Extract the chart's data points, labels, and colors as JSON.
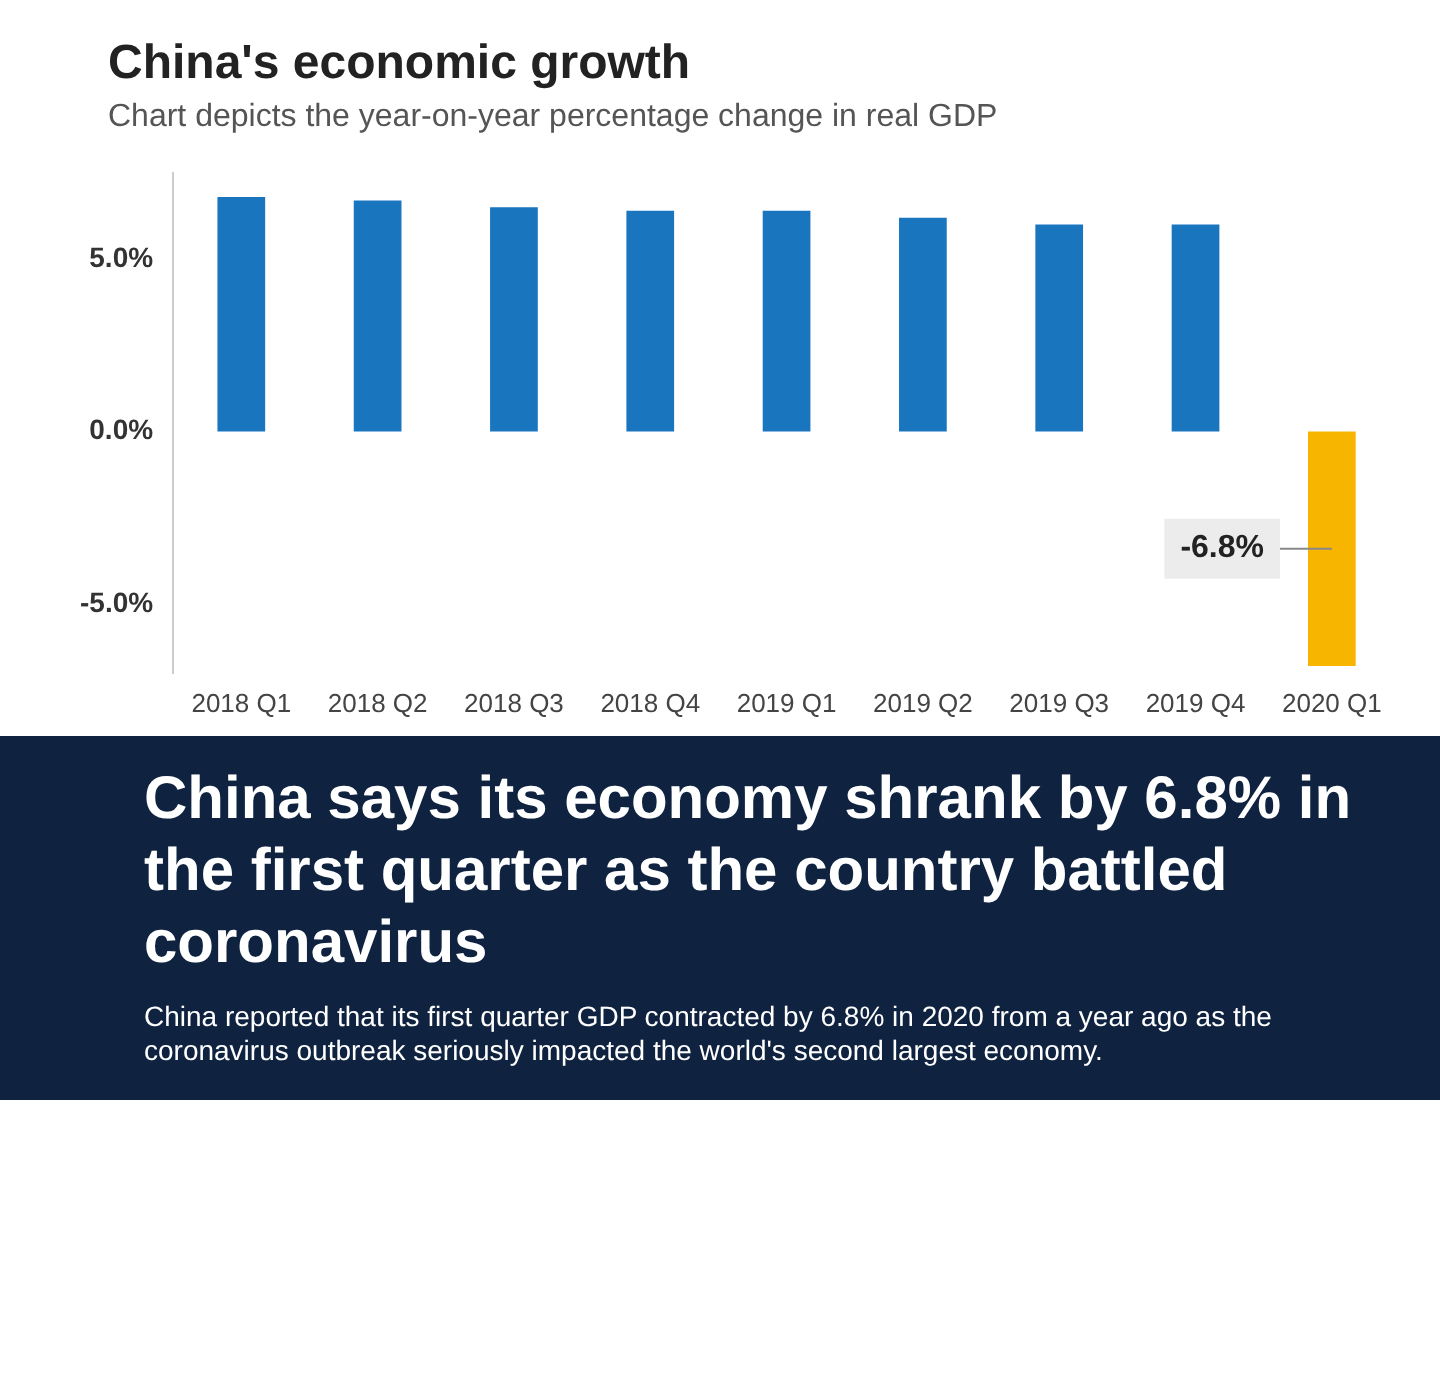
{
  "chart_data": {
    "type": "bar",
    "title": "China's economic growth",
    "subtitle": "Chart depicts the year-on-year percentage change in real GDP",
    "categories": [
      "2018 Q1",
      "2018 Q2",
      "2018 Q3",
      "2018 Q4",
      "2019 Q1",
      "2019 Q2",
      "2019 Q3",
      "2019 Q4",
      "2020 Q1"
    ],
    "values": [
      6.8,
      6.7,
      6.5,
      6.4,
      6.4,
      6.2,
      6.0,
      6.0,
      -6.8
    ],
    "colors": [
      "#1a75bf",
      "#1a75bf",
      "#1a75bf",
      "#1a75bf",
      "#1a75bf",
      "#1a75bf",
      "#1a75bf",
      "#1a75bf",
      "#f7b500"
    ],
    "value_labels": [
      null,
      null,
      null,
      null,
      null,
      null,
      null,
      null,
      "-6.8%"
    ],
    "ylim": [
      -7,
      7.5
    ],
    "yticks": [
      {
        "value": -5,
        "label": "-5.0%"
      },
      {
        "value": 0,
        "label": "0.0%"
      },
      {
        "value": 5,
        "label": "5.0%"
      }
    ],
    "annotations": [
      "China says its economy shrank by 6.8% in the first quarter as the country battled coronavirus",
      "China reported that its first quarter GDP contracted by 6.8% in 2020 from a year ago as the coronavirus outbreak seriously impacted the world's second largest economy."
    ]
  }
}
